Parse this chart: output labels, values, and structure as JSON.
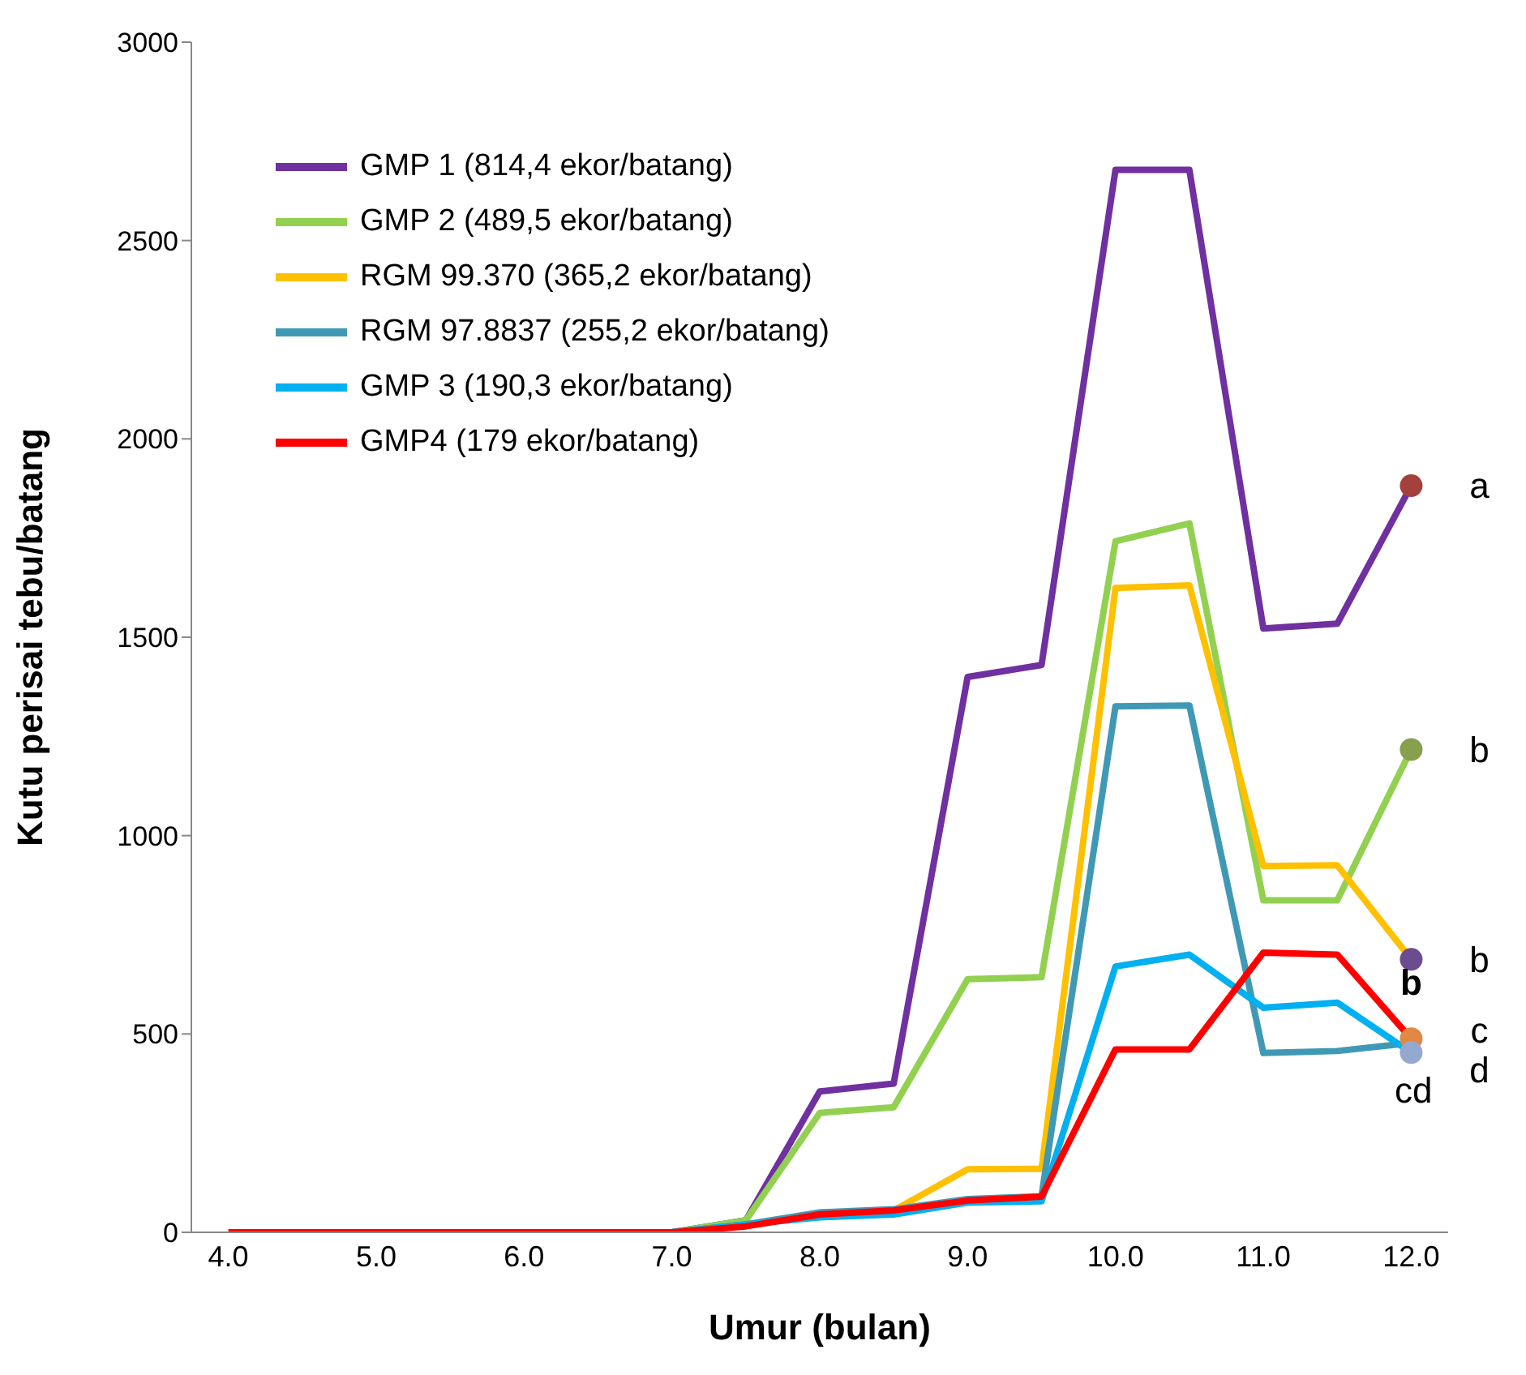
{
  "chart_data": {
    "type": "line",
    "xlabel": "Umur (bulan)",
    "ylabel": "Kutu perisai tebu/batang",
    "categories": [
      "4.0",
      null,
      "5.0",
      null,
      "6.0",
      null,
      "7.0",
      null,
      "8.0",
      null,
      "9.0",
      null,
      "10.0",
      null,
      "11.0",
      null,
      "12.0"
    ],
    "series": [
      {
        "name": "GMP 1 (814,4 ekor/batang)",
        "color": "#7030a0",
        "values": [
          null,
          null,
          null,
          null,
          null,
          null,
          0,
          30,
          355,
          375,
          1400,
          1430,
          2678,
          2678,
          1522,
          1534,
          1882
        ]
      },
      {
        "name": "GMP 2 (489,5 ekor/batang)",
        "color": "#92d050",
        "values": [
          null,
          null,
          null,
          null,
          null,
          null,
          0,
          30,
          301,
          315,
          638,
          643,
          1742,
          1787,
          837,
          837,
          1217
        ]
      },
      {
        "name": "RGM 99.370 (365,2 ekor/batang)",
        "color": "#ffc000",
        "values": [
          null,
          null,
          null,
          null,
          null,
          null,
          null,
          null,
          50,
          55,
          159,
          160,
          1624,
          1631,
          923,
          925,
          688
        ]
      },
      {
        "name": "RGM 97.8837 (255,2 ekor/batang)",
        "color": "#4099b4",
        "values": [
          null,
          null,
          null,
          null,
          null,
          null,
          0,
          20,
          50,
          58,
          84,
          91,
          1326,
          1328,
          452,
          457,
          477
        ]
      },
      {
        "name": "GMP 3 (190,3 ekor/batang)",
        "color": "#00b0f0",
        "values": [
          null,
          null,
          null,
          null,
          null,
          null,
          0,
          20,
          38,
          45,
          75,
          78,
          670,
          700,
          566,
          579,
          453
        ]
      },
      {
        "name": "GMP4 (179 ekor/batang)",
        "color": "#ff0000",
        "values": [
          0,
          0,
          0,
          0,
          0,
          0,
          0,
          15,
          45,
          55,
          80,
          90,
          461,
          461,
          705,
          700,
          488
        ]
      },
      {
        "type": "scatter",
        "marker": "circle",
        "x": [
          "12.0",
          "12.0",
          "12.0",
          "12.0",
          "12.0"
        ],
        "values": [
          1882,
          1217,
          688,
          488,
          453
        ],
        "colors": [
          "#a5403c",
          "#86a04d",
          "#6b4c8f",
          "#e08844",
          "#94a8d0"
        ]
      }
    ],
    "annotations": [
      {
        "text": "a",
        "x": "12.0",
        "y": 1882
      },
      {
        "text": "b",
        "x": "12.0",
        "y": 1217
      },
      {
        "text": "b",
        "x": "12.0",
        "y": 688
      },
      {
        "text": "b",
        "x": "12.0",
        "y": 688
      },
      {
        "text": "c",
        "x": "12.0",
        "y": 510
      },
      {
        "text": "d",
        "x": "12.0",
        "y": 410
      },
      "cd"
    ],
    "ylim": [
      0,
      3000
    ],
    "yticks": [
      0,
      500,
      1000,
      1500,
      2000,
      2500,
      3000
    ],
    "grid": false,
    "legend": "top left",
    "marker": "none",
    "line_style": "solid"
  }
}
